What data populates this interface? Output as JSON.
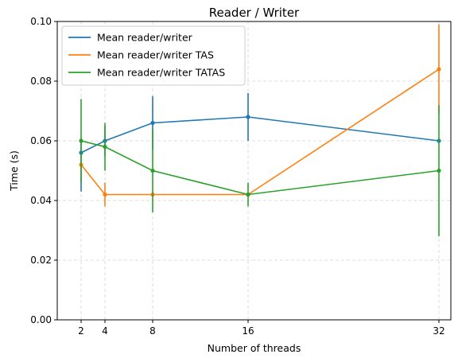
{
  "chart_data": {
    "type": "line",
    "title": "Reader / Writer",
    "xlabel": "Number of threads",
    "ylabel": "Time (s)",
    "x": [
      2,
      4,
      8,
      16,
      32
    ],
    "xticks": [
      "2",
      "4",
      "8",
      "16",
      "32"
    ],
    "yticks": [
      "0.00",
      "0.02",
      "0.04",
      "0.06",
      "0.08",
      "0.10"
    ],
    "xlim": [
      0,
      33
    ],
    "ylim": [
      0,
      0.1
    ],
    "grid": true,
    "legend_position": "top-left",
    "series": [
      {
        "name": "Mean reader/writer",
        "color": "#1f77b4",
        "values": [
          0.056,
          0.06,
          0.066,
          0.068,
          0.06
        ],
        "err_low": [
          0.043,
          0.055,
          0.057,
          0.06,
          0.06
        ],
        "err_high": [
          0.06,
          0.065,
          0.075,
          0.076,
          0.06
        ]
      },
      {
        "name": "Mean reader/writer TAS",
        "color": "#ff7f0e",
        "values": [
          0.052,
          0.042,
          0.042,
          0.042,
          0.084
        ],
        "err_low": [
          0.051,
          0.038,
          0.042,
          0.042,
          0.069
        ],
        "err_high": [
          0.053,
          0.046,
          0.042,
          0.042,
          0.099
        ]
      },
      {
        "name": "Mean reader/writer TATAS",
        "color": "#2ca02c",
        "values": [
          0.06,
          0.058,
          0.05,
          0.042,
          0.05
        ],
        "err_low": [
          0.046,
          0.05,
          0.036,
          0.038,
          0.028
        ],
        "err_high": [
          0.074,
          0.066,
          0.064,
          0.046,
          0.072
        ]
      }
    ]
  }
}
